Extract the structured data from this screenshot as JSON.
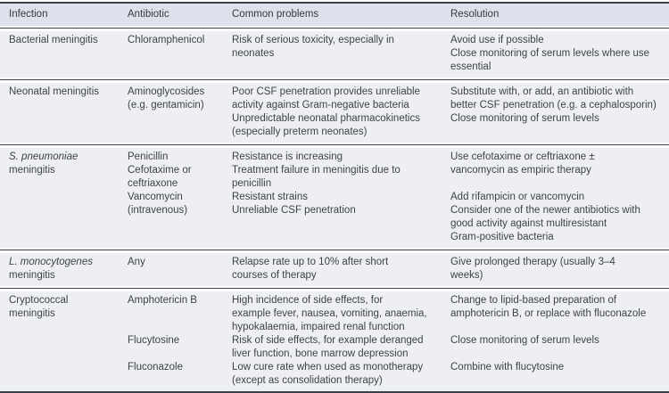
{
  "table": {
    "columns": [
      "Infection",
      "Antibiotic",
      "Common problems",
      "Resolution"
    ],
    "rows": [
      {
        "infection_italic": "",
        "infection": "Bacterial meningitis",
        "antibiotic": "Chloramphenicol",
        "problems": "Risk of serious toxicity, especially in\nneonates",
        "resolution": "Avoid use if possible\nClose monitoring of serum levels where use\nessential"
      },
      {
        "infection_italic": "",
        "infection": "Neonatal meningitis",
        "antibiotic": "Aminoglycosides\n(e.g. gentamicin)",
        "problems": "Poor CSF penetration provides unreliable\nactivity against Gram-negative bacteria\nUnpredictable neonatal pharmacokinetics\n(especially preterm neonates)",
        "resolution": "Substitute with, or add, an antibiotic with\nbetter CSF penetration (e.g. a cephalosporin)\nClose monitoring of serum levels"
      },
      {
        "infection_italic": "S. pneumoniae",
        "infection": "meningitis",
        "antibiotic": "Penicillin\nCefotaxime or\nceftriaxone\nVancomycin\n(intravenous)",
        "problems": "Resistance is increasing\nTreatment failure in meningitis due to\npenicillin\nResistant strains\nUnreliable CSF penetration",
        "resolution": "Use cefotaxime or ceftriaxone ±\nvancomycin as empiric therapy\n\nAdd rifampicin or vancomycin\nConsider one of the newer antibiotics with\ngood activity against multiresistant\nGram-positive bacteria"
      },
      {
        "infection_italic": "L. monocytogenes",
        "infection": "meningitis",
        "antibiotic": "Any",
        "problems": "Relapse rate up to 10% after short\ncourses of therapy",
        "resolution": "Give prolonged therapy (usually 3–4\nweeks)"
      },
      {
        "infection_italic": "",
        "infection": "Cryptococcal\nmeningitis",
        "antibiotic": "Amphotericin B\n\n\nFlucytosine\n\nFluconazole",
        "problems": "High incidence of side effects, for\nexample fever, nausea, vomiting, anaemia,\nhypokalaemia, impaired renal function\nRisk of side effects, for example deranged\nliver function, bone marrow depression\nLow cure rate when used as monotherapy\n(except as consolidation therapy)",
        "resolution": "Change to lipid-based preparation of\namphotericin B, or replace with fluconazole\n\nClose monitoring of serum levels\n\nCombine with flucytosine"
      }
    ]
  },
  "colors": {
    "header_bg": "#dce1eb",
    "row_bg": "#edeff3",
    "rule_line": "#3a414b",
    "text": "#3e4247"
  }
}
